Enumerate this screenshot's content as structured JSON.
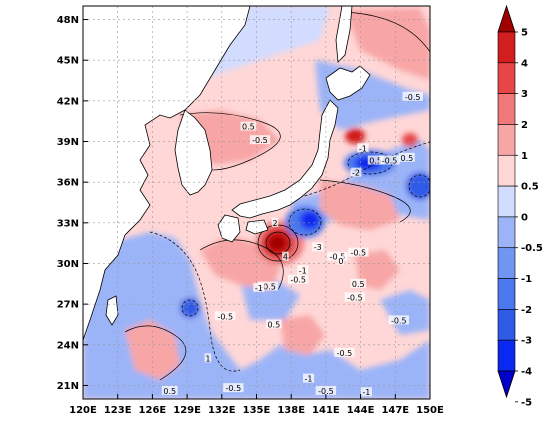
{
  "map": {
    "lon_ticks": [
      "120E",
      "123E",
      "126E",
      "129E",
      "132E",
      "135E",
      "138E",
      "141E",
      "144E",
      "147E",
      "150E"
    ],
    "lat_ticks": [
      "21N",
      "24N",
      "27N",
      "30N",
      "33N",
      "36N",
      "39N",
      "42N",
      "45N",
      "48N"
    ],
    "lon_range": [
      120,
      150
    ],
    "lat_range": [
      20,
      49
    ],
    "grid": true,
    "land_color": "#ffffff",
    "coastline_color": "#000000"
  },
  "colorbar": {
    "labels": [
      "-5",
      "-4",
      "-3",
      "-2",
      "-1",
      "-0.5",
      "0",
      "0.5",
      "1",
      "2",
      "3",
      "4",
      "5"
    ],
    "colors": [
      "#0000c8",
      "#0a28f0",
      "#2d5ae6",
      "#4b78ee",
      "#6e96f2",
      "#9bb4f8",
      "#d2dcff",
      "#ffd7d7",
      "#f8a5a5",
      "#f07878",
      "#e64646",
      "#d21e1e",
      "#a00000"
    ]
  },
  "contour_labels": [
    {
      "text": "0.5",
      "lon": 134.3,
      "lat": 40.1
    },
    {
      "text": "-0.5",
      "lon": 135.3,
      "lat": 39.1
    },
    {
      "text": "-1",
      "lon": 144.2,
      "lat": 38.5
    },
    {
      "text": "0.5",
      "lon": 145.3,
      "lat": 37.6
    },
    {
      "text": "-0.5",
      "lon": 146.5,
      "lat": 37.6
    },
    {
      "text": "-2",
      "lon": 143.6,
      "lat": 36.7
    },
    {
      "text": "-0.5",
      "lon": 148.5,
      "lat": 42.3
    },
    {
      "text": "0.5",
      "lon": 148.0,
      "lat": 37.8
    },
    {
      "text": "2",
      "lon": 136.6,
      "lat": 33.0
    },
    {
      "text": "4",
      "lon": 137.5,
      "lat": 30.5
    },
    {
      "text": "-3",
      "lon": 140.3,
      "lat": 31.2
    },
    {
      "text": "-0.5",
      "lon": 142.0,
      "lat": 30.5
    },
    {
      "text": "0",
      "lon": 142.3,
      "lat": 30.2
    },
    {
      "text": "-0.5",
      "lon": 143.8,
      "lat": 30.8
    },
    {
      "text": "-1",
      "lon": 139.0,
      "lat": 29.5
    },
    {
      "text": "-0.5",
      "lon": 138.6,
      "lat": 28.8
    },
    {
      "text": "-0.5",
      "lon": 136.0,
      "lat": 28.3
    },
    {
      "text": "-1",
      "lon": 135.2,
      "lat": 28.2
    },
    {
      "text": "0.5",
      "lon": 143.8,
      "lat": 28.5
    },
    {
      "text": "-0.5",
      "lon": 143.5,
      "lat": 27.5
    },
    {
      "text": "-0.5",
      "lon": 132.3,
      "lat": 26.1
    },
    {
      "text": "0.5",
      "lon": 136.5,
      "lat": 25.5
    },
    {
      "text": "-0.5",
      "lon": 147.3,
      "lat": 25.8
    },
    {
      "text": "1",
      "lon": 130.8,
      "lat": 23.0
    },
    {
      "text": "-0.5",
      "lon": 142.6,
      "lat": 23.4
    },
    {
      "text": "-1",
      "lon": 139.5,
      "lat": 21.5
    },
    {
      "text": "-0.5",
      "lon": 133.0,
      "lat": 20.8
    },
    {
      "text": "-1",
      "lon": 144.5,
      "lat": 20.5
    },
    {
      "text": "0.5",
      "lon": 127.5,
      "lat": 20.6
    },
    {
      "text": "-0.5",
      "lon": 141.0,
      "lat": 20.6
    }
  ]
}
